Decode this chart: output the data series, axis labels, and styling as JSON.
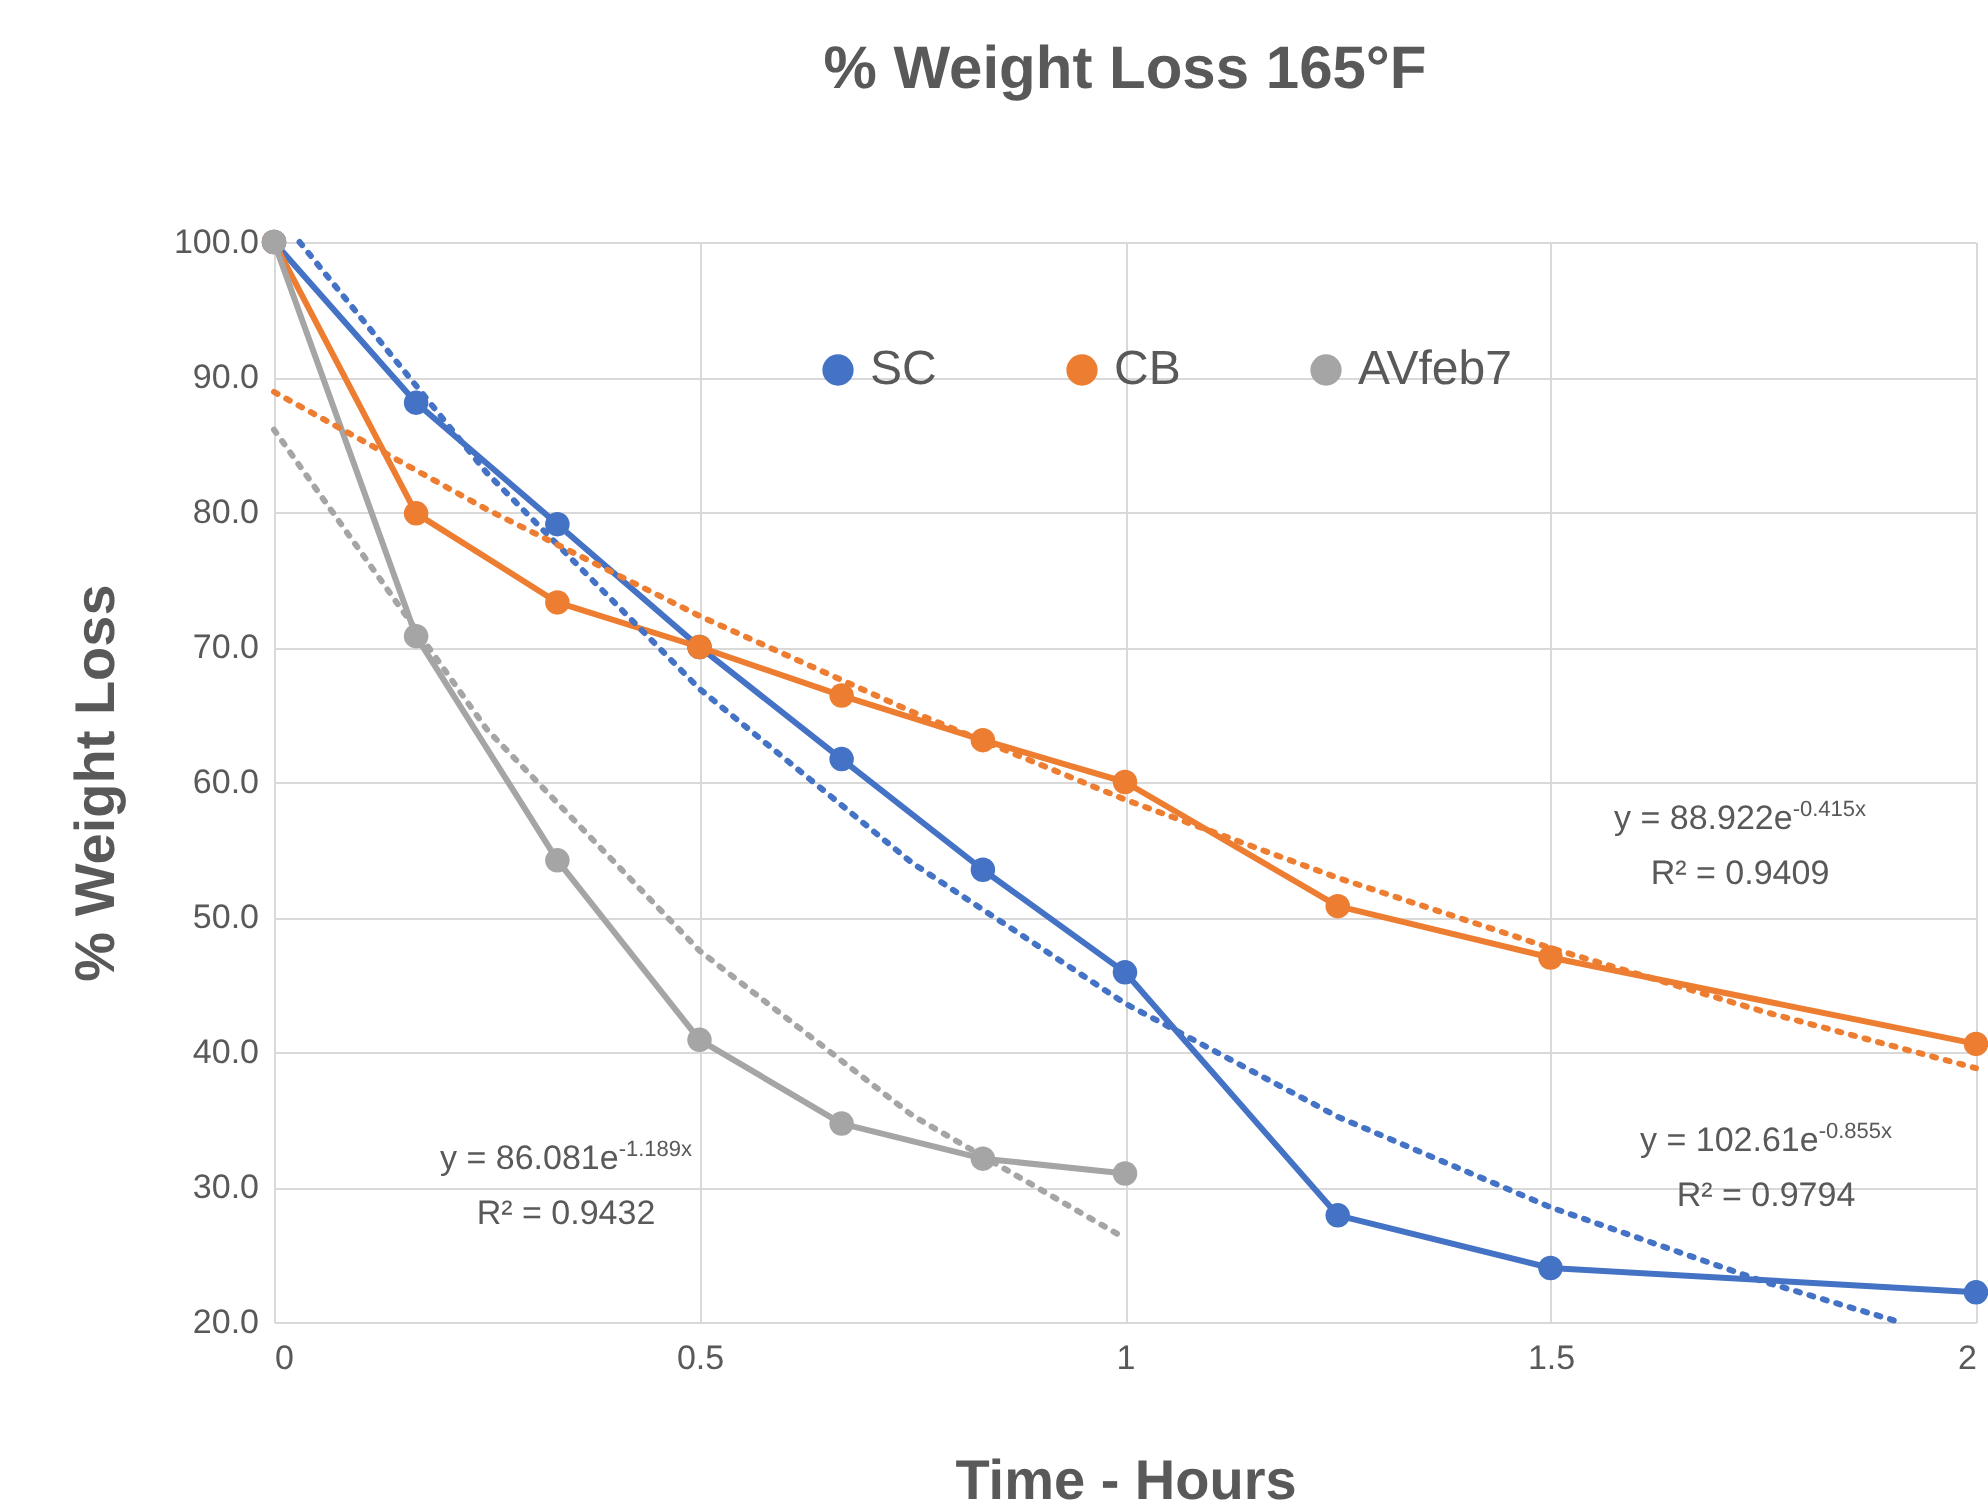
{
  "chart_data": {
    "type": "line",
    "title": "% Weight Loss 165°F",
    "xlabel": "Time - Hours",
    "ylabel": "% Weight Loss",
    "xlim": [
      0,
      2
    ],
    "xticks": [
      0,
      0.5,
      1,
      1.5,
      2
    ],
    "ylim": [
      20,
      100
    ],
    "yticks": [
      {
        "value": 20,
        "label": "20.0"
      },
      {
        "value": 30,
        "label": "30.0"
      },
      {
        "value": 40,
        "label": "40.0"
      },
      {
        "value": 50,
        "label": "50.0"
      },
      {
        "value": 60,
        "label": "60.0"
      },
      {
        "value": 70,
        "label": "70.0"
      },
      {
        "value": 80,
        "label": "80.0"
      },
      {
        "value": 90,
        "label": "90.0"
      },
      {
        "value": 100,
        "label": "100.0"
      }
    ],
    "grid": true,
    "legend": "top",
    "series": [
      {
        "name": "SC",
        "color": "#4472c4",
        "marker": "circle",
        "line_style": "solid",
        "x": [
          0,
          0.167,
          0.333,
          0.5,
          0.667,
          0.833,
          1,
          1.25,
          1.5,
          2
        ],
        "values": [
          100,
          88.1,
          79.1,
          70.0,
          61.7,
          53.5,
          45.9,
          27.9,
          24.0,
          22.2
        ]
      },
      {
        "name": "CB",
        "color": "#ed7d31",
        "marker": "circle",
        "line_style": "solid",
        "x": [
          0,
          0.167,
          0.333,
          0.5,
          0.667,
          0.833,
          1,
          1.25,
          1.5,
          2
        ],
        "values": [
          100,
          79.9,
          73.3,
          70.0,
          66.4,
          63.1,
          60.0,
          50.8,
          47.0,
          40.6
        ]
      },
      {
        "name": "AVfeb7",
        "color": "#a5a5a5",
        "marker": "circle",
        "line_style": "solid",
        "x": [
          0,
          0.167,
          0.333,
          0.5,
          0.667,
          0.833,
          1
        ],
        "values": [
          100,
          70.8,
          54.2,
          40.9,
          34.7,
          32.1,
          31.0
        ]
      },
      {
        "color": "#4472c4",
        "marker": "none",
        "line_style": "dotted",
        "x": [
          0.03,
          0.25,
          0.5,
          0.75,
          1,
          1.25,
          1.5,
          1.75,
          1.91
        ],
        "values": [
          100.0,
          82.9,
          66.9,
          54.0,
          43.6,
          35.2,
          28.5,
          23.0,
          20.0
        ]
      },
      {
        "color": "#ed7d31",
        "marker": "none",
        "line_style": "dotted",
        "x": [
          0,
          0.25,
          0.5,
          0.75,
          1,
          1.25,
          1.5,
          1.75,
          2
        ],
        "values": [
          88.9,
          80.2,
          72.3,
          65.2,
          58.7,
          52.9,
          47.7,
          43.0,
          38.8
        ]
      },
      {
        "color": "#a5a5a5",
        "marker": "none",
        "line_style": "dotted",
        "x": [
          0,
          0.25,
          0.5,
          0.75,
          1
        ],
        "values": [
          86.1,
          63.9,
          47.5,
          35.3,
          26.2
        ]
      }
    ],
    "annotations": [
      "y = 88.922e$^{-0.415x}$\nR² = 0.9409",
      "y = 102.61e$^{-0.855x}$\nR² = 0.9794",
      "y = 86.081e$^{-1.189x}$\nR² = 0.9432"
    ]
  }
}
